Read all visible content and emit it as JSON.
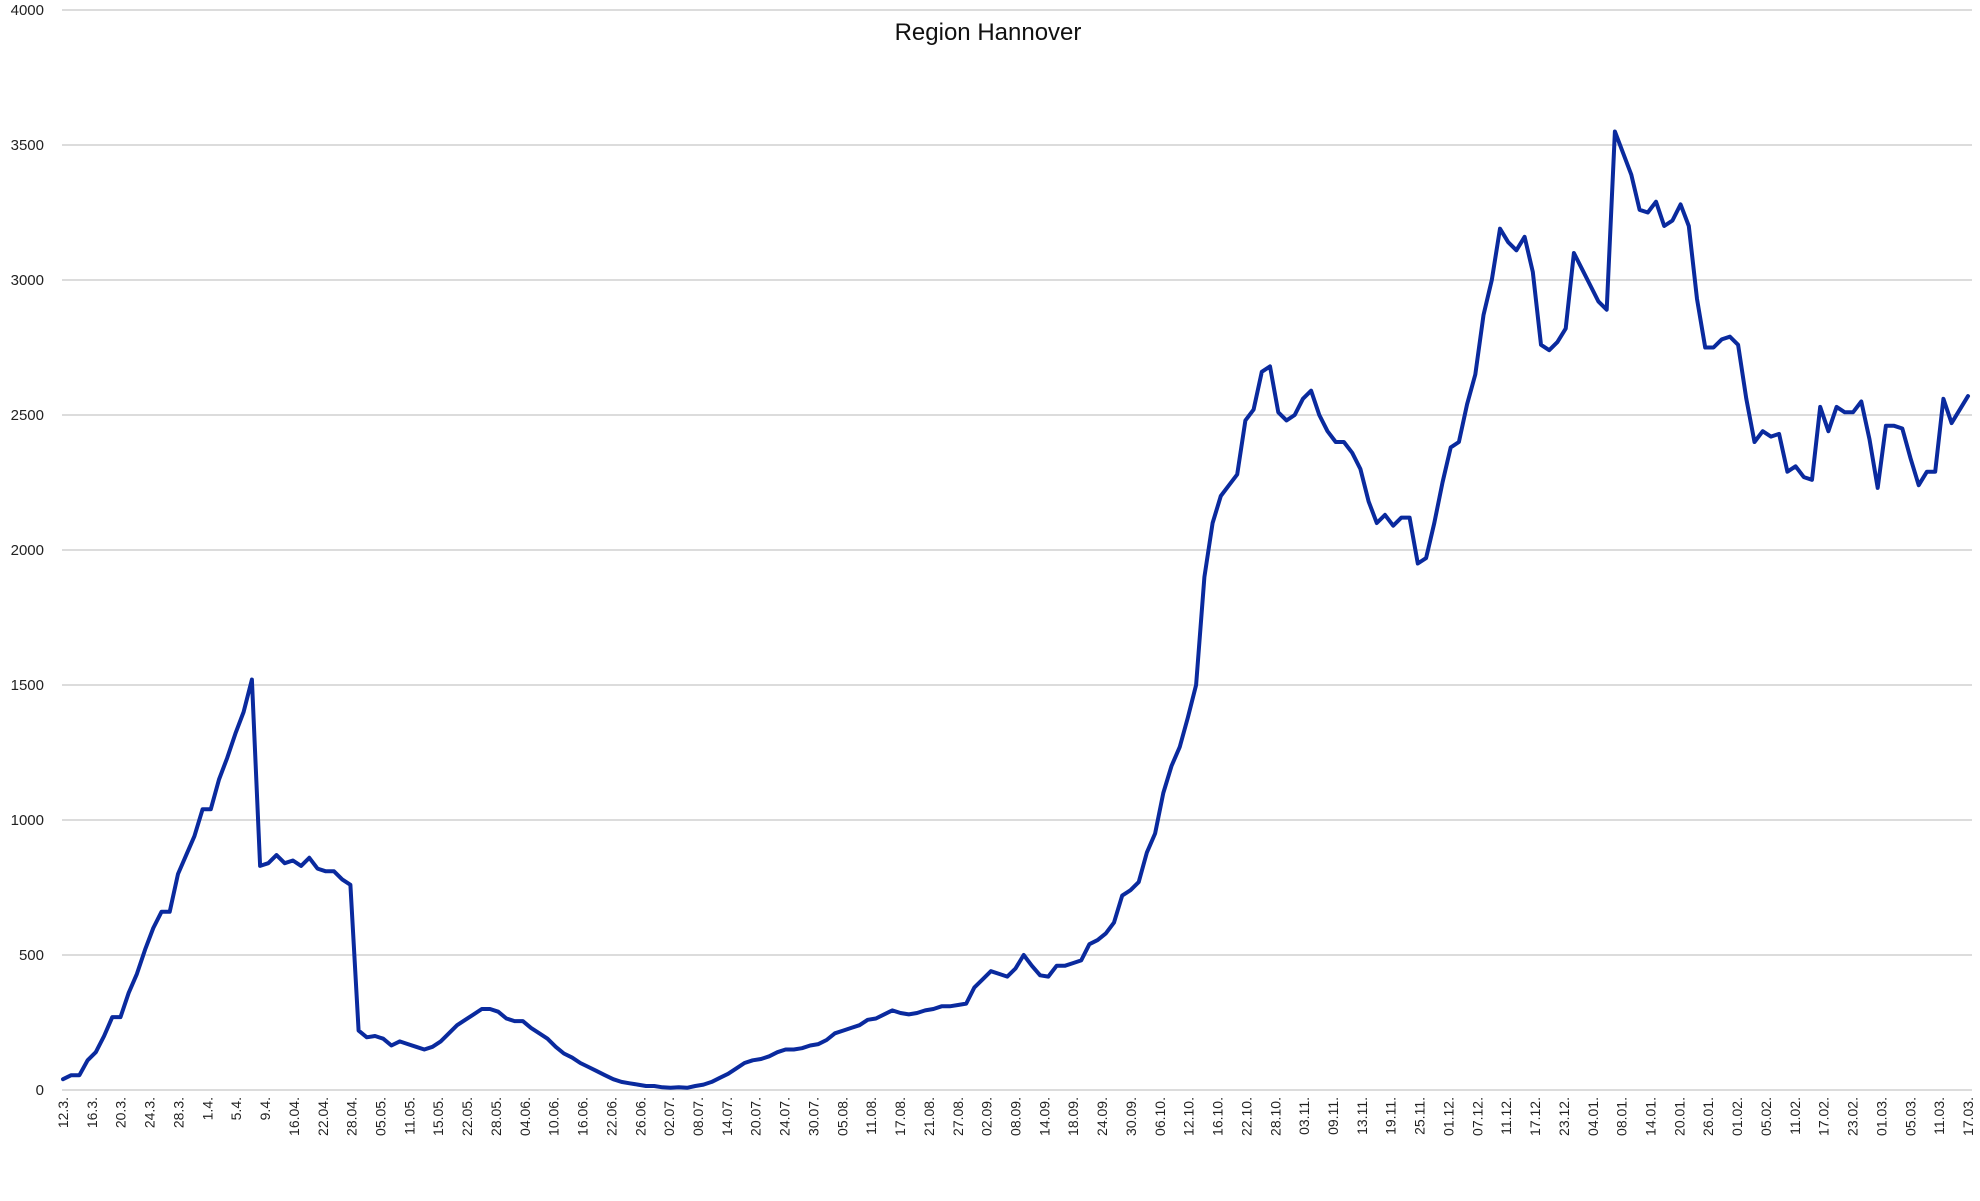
{
  "chart_data": {
    "type": "line",
    "title": "Region Hannover",
    "xlabel": "",
    "ylabel": "",
    "ylim": [
      0,
      4000
    ],
    "y_ticks": [
      0,
      500,
      1000,
      1500,
      2000,
      2500,
      3000,
      3500,
      4000
    ],
    "grid": true,
    "legend": "none",
    "color": "#0a2a9e",
    "x_tick_labels": [
      "12.3.",
      "16.3.",
      "20.3.",
      "24.3.",
      "28.3.",
      "1.4.",
      "5.4.",
      "9.4.",
      "16.04.",
      "22.04.",
      "28.04.",
      "05.05.",
      "11.05.",
      "15.05.",
      "22.05.",
      "28.05.",
      "04.06.",
      "10.06.",
      "16.06.",
      "22.06.",
      "26.06.",
      "02.07.",
      "08.07.",
      "14.07.",
      "20.07.",
      "24.07.",
      "30.07.",
      "05.08.",
      "11.08.",
      "17.08.",
      "21.08.",
      "27.08.",
      "02.09.",
      "08.09.",
      "14.09.",
      "18.09.",
      "24.09.",
      "30.09.",
      "06.10.",
      "12.10.",
      "16.10.",
      "22.10.",
      "28.10.",
      "03.11.",
      "09.11.",
      "13.11.",
      "19.11.",
      "25.11.",
      "01.12.",
      "07.12.",
      "11.12.",
      "17.12.",
      "23.12.",
      "04.01.",
      "08.01.",
      "14.01.",
      "20.01.",
      "26.01.",
      "01.02.",
      "05.02.",
      "11.02.",
      "17.02.",
      "23.02.",
      "01.03.",
      "05.03.",
      "11.03.",
      "17.03."
    ],
    "values": [
      40,
      55,
      55,
      110,
      140,
      200,
      270,
      270,
      360,
      430,
      520,
      600,
      660,
      660,
      800,
      870,
      940,
      1040,
      1040,
      1150,
      1230,
      1320,
      1400,
      1520,
      830,
      840,
      870,
      840,
      850,
      830,
      860,
      820,
      810,
      810,
      780,
      760,
      220,
      195,
      200,
      190,
      165,
      180,
      170,
      160,
      150,
      160,
      180,
      210,
      240,
      260,
      280,
      300,
      300,
      290,
      265,
      255,
      255,
      230,
      210,
      190,
      160,
      135,
      120,
      100,
      85,
      70,
      55,
      40,
      30,
      25,
      20,
      15,
      15,
      10,
      8,
      10,
      8,
      15,
      20,
      30,
      45,
      60,
      80,
      100,
      110,
      115,
      125,
      140,
      150,
      150,
      155,
      165,
      170,
      185,
      210,
      220,
      230,
      240,
      260,
      265,
      280,
      295,
      285,
      280,
      285,
      295,
      300,
      310,
      310,
      315,
      320,
      380,
      410,
      440,
      430,
      420,
      450,
      500,
      460,
      425,
      420,
      460,
      460,
      470,
      480,
      540,
      555,
      580,
      620,
      720,
      740,
      770,
      880,
      950,
      1100,
      1200,
      1270,
      1380,
      1500,
      1900,
      2100,
      2200,
      2240,
      2280,
      2480,
      2520,
      2660,
      2680,
      2510,
      2480,
      2500,
      2560,
      2590,
      2500,
      2440,
      2400,
      2400,
      2360,
      2300,
      2180,
      2100,
      2130,
      2090,
      2120,
      2120,
      1950,
      1970,
      2100,
      2250,
      2380,
      2400,
      2540,
      2650,
      2870,
      3000,
      3190,
      3140,
      3110,
      3160,
      3030,
      2760,
      2740,
      2770,
      2820,
      3100,
      3040,
      2980,
      2920,
      2890,
      3550,
      3470,
      3390,
      3260,
      3250,
      3290,
      3200,
      3220,
      3280,
      3200,
      2930,
      2750,
      2750,
      2780,
      2790,
      2760,
      2560,
      2400,
      2440,
      2420,
      2430,
      2290,
      2310,
      2270,
      2260,
      2530,
      2440,
      2530,
      2510,
      2510,
      2550,
      2410,
      2230,
      2460,
      2460,
      2450,
      2340,
      2240,
      2290,
      2290,
      2560,
      2470,
      2520,
      2570
    ]
  }
}
